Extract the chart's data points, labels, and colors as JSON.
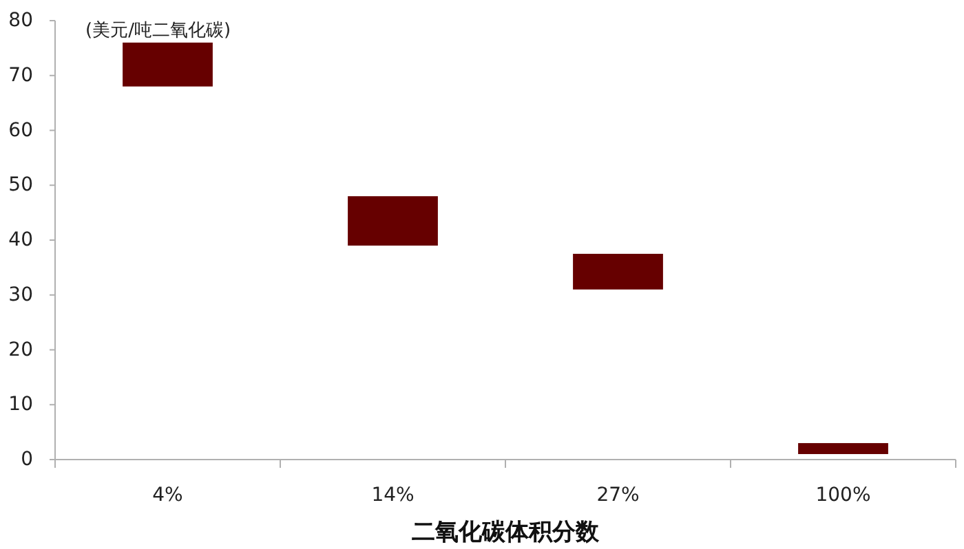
{
  "chart_data": {
    "type": "bar",
    "categories": [
      "4%",
      "14%",
      "27%",
      "100%"
    ],
    "base": [
      68,
      39,
      31,
      1
    ],
    "values": [
      8,
      9,
      6.5,
      2
    ],
    "color": "#660000",
    "xlabel": "二氧化碳体积分数",
    "ylabel": "(美元/吨二氧化碳)",
    "ylim": [
      0,
      80
    ],
    "yticks": [
      0,
      10,
      20,
      30,
      40,
      50,
      60,
      70,
      80
    ]
  }
}
